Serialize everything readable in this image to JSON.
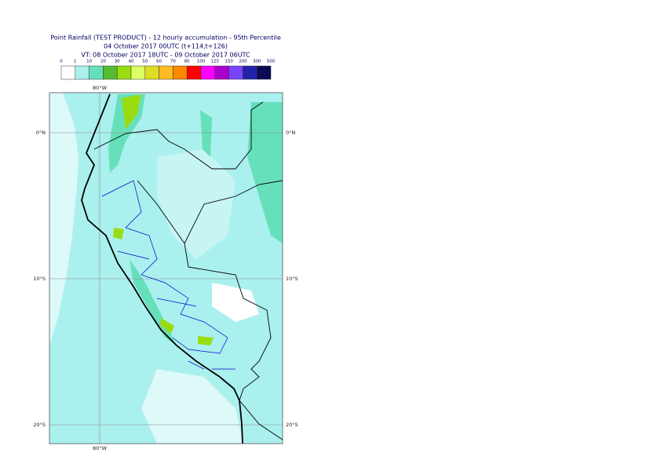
{
  "header": {
    "title": "Point Rainfall (TEST PRODUCT) - 12 hourly accumulation - 95th Percentile",
    "base_time": "04 October 2017 00UTC (t+114,t+126)",
    "valid_time": "VT: 08 October 2017 18UTC - 09 October 2017 06UTC"
  },
  "legend": {
    "ticks": [
      0,
      1,
      10,
      20,
      30,
      40,
      50,
      60,
      70,
      80,
      100,
      125,
      150,
      200,
      300,
      500
    ],
    "colors": [
      "#ffffff",
      "#aaf0ee",
      "#66e0bb",
      "#55bb33",
      "#99dd11",
      "#ddff66",
      "#dddd22",
      "#ffbb22",
      "#ff8800",
      "#ff0000",
      "#ff00ff",
      "#aa00cc",
      "#7744ff",
      "#2222aa",
      "#0a0a55"
    ]
  },
  "map": {
    "lon_labels": [
      "80°W"
    ],
    "lat_labels": [
      "0°N",
      "10°S",
      "20°S"
    ]
  }
}
